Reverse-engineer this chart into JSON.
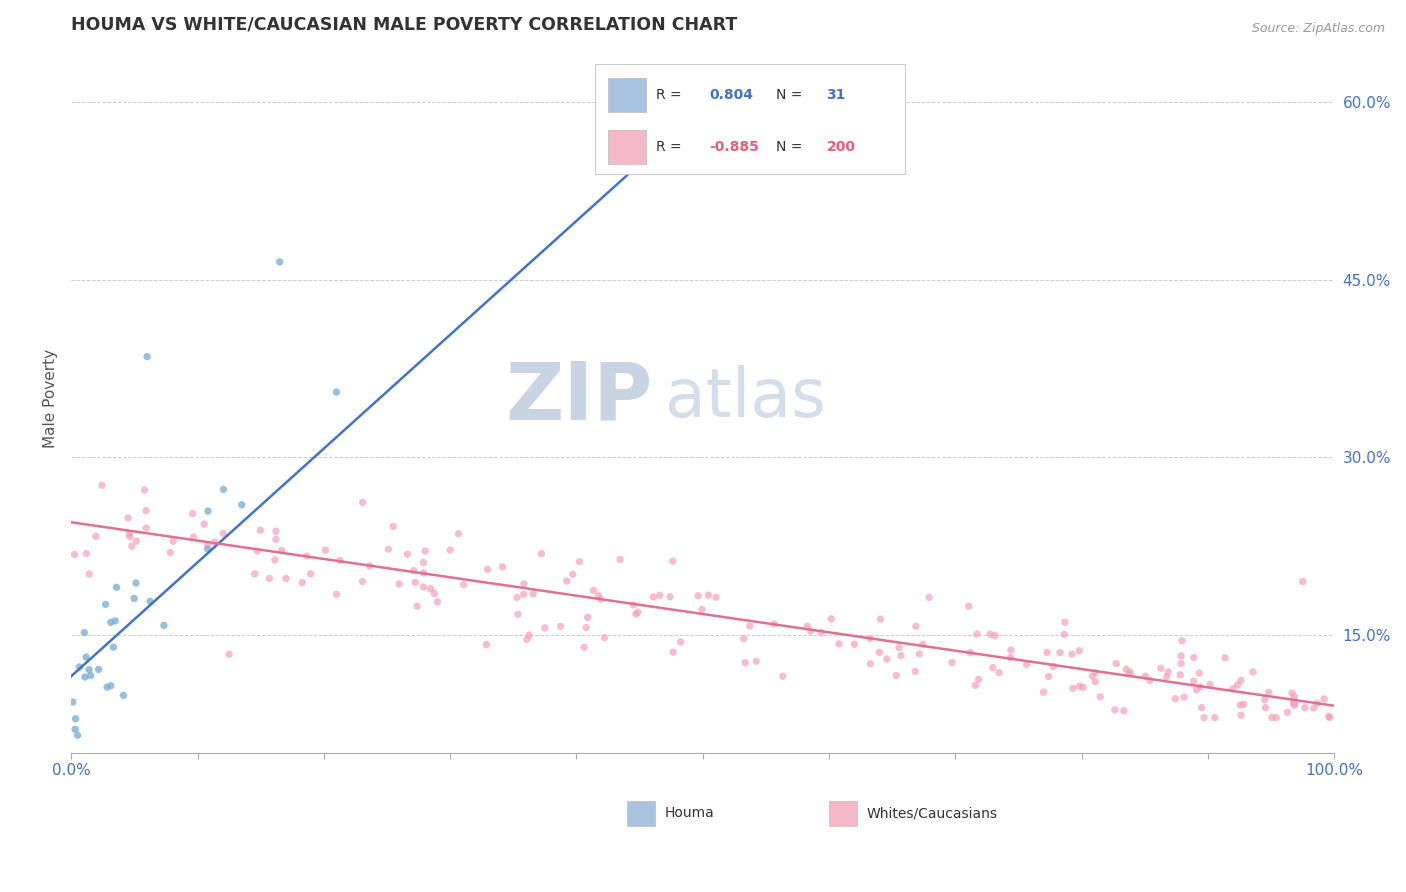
{
  "title": "HOUMA VS WHITE/CAUCASIAN MALE POVERTY CORRELATION CHART",
  "source_text": "Source: ZipAtlas.com",
  "ylabel": "Male Poverty",
  "y_ticks": [
    0.15,
    0.3,
    0.45,
    0.6
  ],
  "y_tick_labels": [
    "15.0%",
    "30.0%",
    "45.0%",
    "60.0%"
  ],
  "xlim": [
    0.0,
    1.0
  ],
  "ylim": [
    0.05,
    0.65
  ],
  "legend_entries": [
    {
      "label": "Houma",
      "R": "0.804",
      "N": "31",
      "sq_color": "#a8c4e0",
      "text_color": "#4472c4"
    },
    {
      "label": "Whites/Caucasians",
      "R": "-0.885",
      "N": "200",
      "sq_color": "#f4b8c8",
      "text_color": "#e0607a"
    }
  ],
  "houma_scatter_color": "#7eb0d5",
  "houma_line_color": "#4472c4",
  "white_scatter_color": "#f4a0b8",
  "white_line_color": "#e07090",
  "watermark_ZIP": "ZIP",
  "watermark_atlas": "atlas",
  "watermark_color_ZIP": "#c8d4e4",
  "watermark_color_atlas": "#d4dde8",
  "grid_color": "#c0c8d8",
  "background_color": "#ffffff",
  "houma_N": 31,
  "white_N": 200,
  "houma_trend_x0": 0.0,
  "houma_trend_y0": 0.115,
  "houma_trend_x1": 0.52,
  "houma_trend_y1": 0.615,
  "white_trend_x0": 0.0,
  "white_trend_y0": 0.245,
  "white_trend_x1": 1.0,
  "white_trend_y1": 0.09
}
